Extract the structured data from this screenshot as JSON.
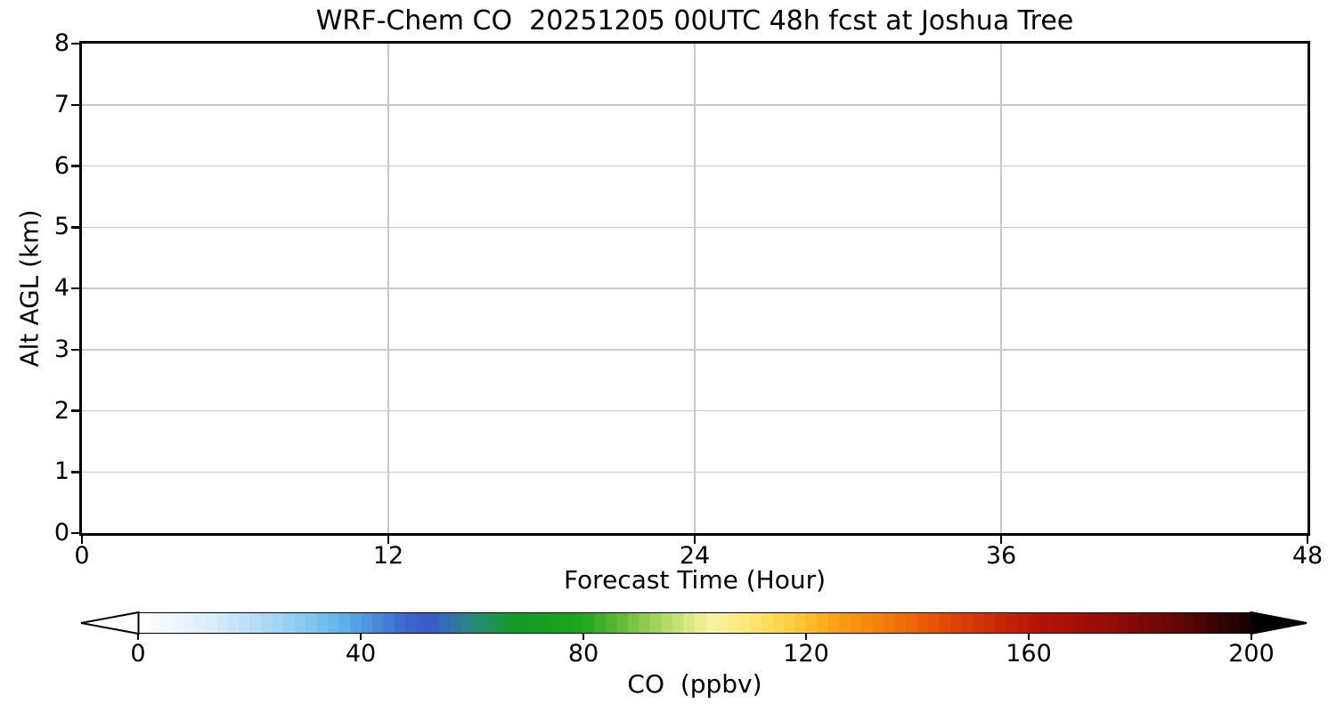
{
  "chart_data": {
    "type": "heatmap",
    "title": "WRF-Chem CO  20251205 00UTC 48h fcst at Joshua Tree",
    "xlabel": "Forecast Time (Hour)",
    "ylabel": "Alt AGL (km)",
    "xlim": [
      0,
      48
    ],
    "ylim": [
      0,
      8
    ],
    "x_ticks": [
      0,
      12,
      24,
      36,
      48
    ],
    "y_ticks": [
      0,
      1,
      2,
      3,
      4,
      5,
      6,
      7,
      8
    ],
    "grid": true,
    "grid_color": "#c8c8c8",
    "spine_color": "#000000",
    "plot_background": "#ffffff",
    "field_note": "plot area is empty/white - no CO concentration values visible",
    "series": [],
    "colorbar": {
      "label": "CO  (ppbv)",
      "ticks": [
        0,
        40,
        80,
        120,
        160,
        200
      ],
      "vmin": 0,
      "vmax": 200,
      "bin_size": 2,
      "extend": "both",
      "under_color": "#ffffff",
      "over_color": "#000000",
      "stops": [
        [
          0,
          "#ffffff"
        ],
        [
          6,
          "#f0f7fc"
        ],
        [
          12,
          "#ddeffa"
        ],
        [
          18,
          "#c3e3f8"
        ],
        [
          24,
          "#a5d6f4"
        ],
        [
          30,
          "#86c9f1"
        ],
        [
          36,
          "#62b5ec"
        ],
        [
          42,
          "#4a90dc"
        ],
        [
          48,
          "#3b66d0"
        ],
        [
          52,
          "#3a5ac9"
        ],
        [
          56,
          "#2f72ab"
        ],
        [
          60,
          "#288a78"
        ],
        [
          64,
          "#1d9449"
        ],
        [
          68,
          "#129c28"
        ],
        [
          74,
          "#13a11c"
        ],
        [
          80,
          "#1ea61e"
        ],
        [
          84,
          "#46b02a"
        ],
        [
          88,
          "#71c03d"
        ],
        [
          92,
          "#97cf53"
        ],
        [
          96,
          "#bcdf6c"
        ],
        [
          100,
          "#e2ec8d"
        ],
        [
          103,
          "#f4f1a0"
        ],
        [
          106,
          "#fbee8e"
        ],
        [
          110,
          "#fde672"
        ],
        [
          114,
          "#fdda55"
        ],
        [
          118,
          "#fdcb3a"
        ],
        [
          122,
          "#fcb322"
        ],
        [
          126,
          "#fa9f14"
        ],
        [
          130,
          "#f78e0d"
        ],
        [
          134,
          "#f47d07"
        ],
        [
          138,
          "#f06c04"
        ],
        [
          142,
          "#e95804"
        ],
        [
          146,
          "#df4607"
        ],
        [
          150,
          "#d53806"
        ],
        [
          154,
          "#ca2a05"
        ],
        [
          158,
          "#c01c05"
        ],
        [
          162,
          "#b61306"
        ],
        [
          168,
          "#a60f07"
        ],
        [
          174,
          "#950d07"
        ],
        [
          180,
          "#7f0a06"
        ],
        [
          186,
          "#670805"
        ],
        [
          192,
          "#440404"
        ],
        [
          200,
          "#150101"
        ]
      ]
    }
  }
}
